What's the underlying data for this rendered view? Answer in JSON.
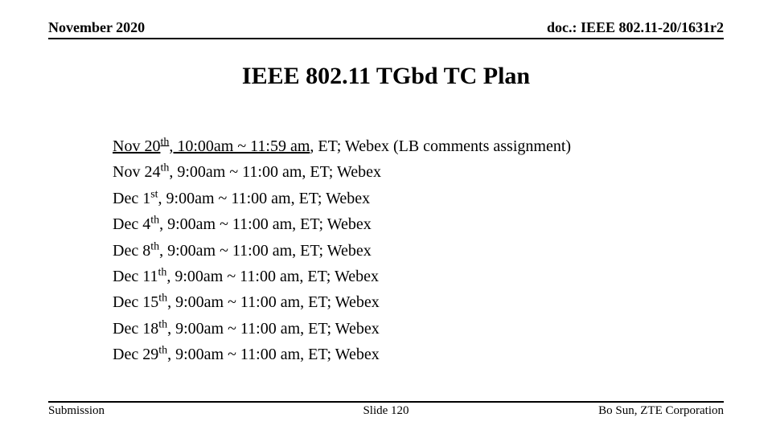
{
  "header": {
    "date": "November 2020",
    "docref": "doc.: IEEE 802.11-20/1631r2"
  },
  "title": "IEEE 802.11 TGbd TC Plan",
  "schedule": [
    {
      "prefix": "Nov 20",
      "ord": "th",
      "time_ul": ", 10:00am ~ 11:59 am",
      "rest": ", ET; Webex (LB comments assignment)",
      "underline_prefix": true
    },
    {
      "prefix": "Nov 24",
      "ord": "th",
      "time_ul": "",
      "rest": ", 9:00am ~ 11:00 am, ET; Webex",
      "underline_prefix": false
    },
    {
      "prefix": "Dec 1",
      "ord": "st",
      "time_ul": "",
      "rest": ", 9:00am ~ 11:00 am, ET; Webex",
      "underline_prefix": false
    },
    {
      "prefix": "Dec 4",
      "ord": "th",
      "time_ul": "",
      "rest": ", 9:00am ~ 11:00 am, ET; Webex",
      "underline_prefix": false
    },
    {
      "prefix": "Dec 8",
      "ord": "th",
      "time_ul": "",
      "rest": ", 9:00am ~ 11:00 am, ET; Webex",
      "underline_prefix": false
    },
    {
      "prefix": "Dec 11",
      "ord": "th",
      "time_ul": "",
      "rest": ", 9:00am ~ 11:00 am, ET; Webex",
      "underline_prefix": false
    },
    {
      "prefix": "Dec 15",
      "ord": "th",
      "time_ul": "",
      "rest": ", 9:00am ~ 11:00 am, ET; Webex",
      "underline_prefix": false
    },
    {
      "prefix": "Dec 18",
      "ord": "th",
      "time_ul": "",
      "rest": ", 9:00am ~ 11:00 am, ET; Webex",
      "underline_prefix": false
    },
    {
      "prefix": "Dec 29",
      "ord": "th",
      "time_ul": "",
      "rest": ", 9:00am ~ 11:00 am, ET; Webex",
      "underline_prefix": false
    }
  ],
  "footer": {
    "left": "Submission",
    "center": "Slide 120",
    "right": "Bo Sun, ZTE Corporation"
  }
}
